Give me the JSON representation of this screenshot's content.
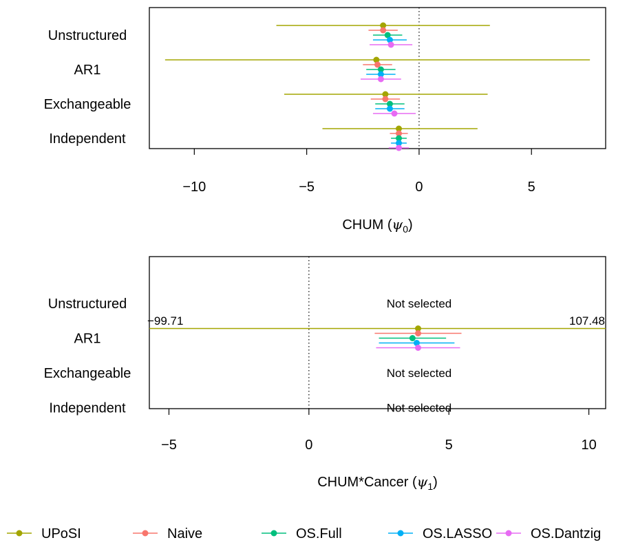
{
  "legend": {
    "placement": "bottom",
    "items": [
      {
        "name": "UPoSI",
        "color": "#A3A500"
      },
      {
        "name": "Naive",
        "color": "#F8766D"
      },
      {
        "name": "OS.Full",
        "color": "#00BF7D"
      },
      {
        "name": "OS.LASSO",
        "color": "#00B0F6"
      },
      {
        "name": "OS.Dantzig",
        "color": "#E76BF3"
      }
    ]
  },
  "chart_data": [
    {
      "type": "forest",
      "xlabel": "CHUM",
      "xlabel_symbol": "ψ",
      "xlabel_subscript": "0",
      "xlim": [
        -12,
        8.3
      ],
      "xticks": [
        -10,
        -5,
        0,
        5
      ],
      "xtick_labels": [
        "−10",
        "−5",
        "0",
        "5"
      ],
      "reference_line": 0,
      "categories": [
        "Unstructured",
        "AR1",
        "Exchangeable",
        "Independent"
      ],
      "notes": [],
      "clip_labels": [],
      "series": [
        {
          "name": "UPoSI",
          "values": [
            {
              "est": -1.6,
              "lo": -6.35,
              "hi": 3.15
            },
            {
              "est": -1.9,
              "lo": -11.3,
              "hi": 7.6
            },
            {
              "est": -1.5,
              "lo": -6.0,
              "hi": 3.05
            },
            {
              "est": -0.9,
              "lo": -4.3,
              "hi": 2.6
            }
          ]
        },
        {
          "name": "Naive",
          "values": [
            {
              "est": -1.6,
              "lo": -2.25,
              "hi": -0.95
            },
            {
              "est": -1.85,
              "lo": -2.5,
              "hi": -1.2
            },
            {
              "est": -1.5,
              "lo": -2.15,
              "hi": -0.85
            },
            {
              "est": -0.9,
              "lo": -1.3,
              "hi": -0.5
            }
          ]
        },
        {
          "name": "OS.Full",
          "values": [
            {
              "est": -1.4,
              "lo": -2.05,
              "hi": -0.75
            },
            {
              "est": -1.7,
              "lo": -2.35,
              "hi": -1.05
            },
            {
              "est": -1.3,
              "lo": -1.95,
              "hi": -0.65
            },
            {
              "est": -0.9,
              "lo": -1.25,
              "hi": -0.55
            }
          ]
        },
        {
          "name": "OS.LASSO",
          "values": [
            {
              "est": -1.3,
              "lo": -2.05,
              "hi": -0.55
            },
            {
              "est": -1.7,
              "lo": -2.35,
              "hi": -1.05
            },
            {
              "est": -1.3,
              "lo": -1.95,
              "hi": -0.65
            },
            {
              "est": -0.9,
              "lo": -1.25,
              "hi": -0.55
            }
          ]
        },
        {
          "name": "OS.Dantzig",
          "values": [
            {
              "est": -1.25,
              "lo": -2.2,
              "hi": -0.3
            },
            {
              "est": -1.7,
              "lo": -2.6,
              "hi": -0.8
            },
            {
              "est": -1.1,
              "lo": -2.05,
              "hi": -0.15
            },
            {
              "est": -0.9,
              "lo": -1.35,
              "hi": -0.45
            }
          ]
        }
      ]
    },
    {
      "type": "forest",
      "xlabel": "CHUM*Cancer",
      "xlabel_symbol": "ψ",
      "xlabel_subscript": "1",
      "xlim": [
        -5.7,
        10.6
      ],
      "xticks": [
        -5,
        0,
        5,
        10
      ],
      "xtick_labels": [
        "−5",
        "0",
        "5",
        "10"
      ],
      "reference_line": 0,
      "categories": [
        "Unstructured",
        "AR1",
        "Exchangeable",
        "Independent"
      ],
      "notes": [
        {
          "category": "Unstructured",
          "text": "Not selected"
        },
        {
          "category": "Exchangeable",
          "text": "Not selected"
        },
        {
          "category": "Independent",
          "text": "Not selected"
        }
      ],
      "clip_labels": [
        {
          "side": "left",
          "text": "−99.71"
        },
        {
          "side": "right",
          "text": "107.48"
        }
      ],
      "series": [
        {
          "name": "UPoSI",
          "values": [
            null,
            {
              "est": 3.9,
              "lo": -99.71,
              "hi": 107.48
            },
            null,
            null
          ]
        },
        {
          "name": "Naive",
          "values": [
            null,
            {
              "est": 3.9,
              "lo": 2.35,
              "hi": 5.45
            },
            null,
            null
          ]
        },
        {
          "name": "OS.Full",
          "values": [
            null,
            {
              "est": 3.7,
              "lo": 2.5,
              "hi": 4.9
            },
            null,
            null
          ]
        },
        {
          "name": "OS.LASSO",
          "values": [
            null,
            {
              "est": 3.85,
              "lo": 2.5,
              "hi": 5.2
            },
            null,
            null
          ]
        },
        {
          "name": "OS.Dantzig",
          "values": [
            null,
            {
              "est": 3.9,
              "lo": 2.4,
              "hi": 5.4
            },
            null,
            null
          ]
        }
      ]
    }
  ]
}
